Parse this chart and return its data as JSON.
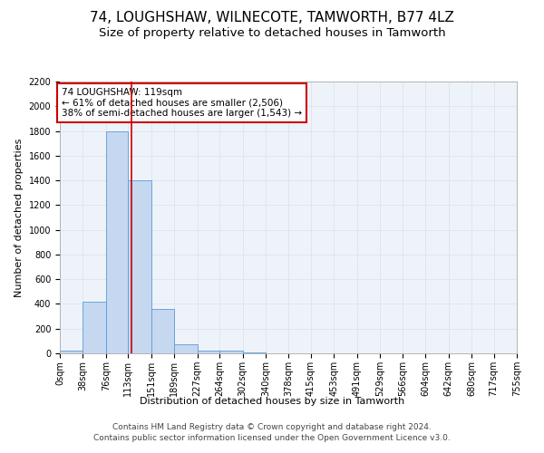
{
  "title": "74, LOUGHSHAW, WILNECOTE, TAMWORTH, B77 4LZ",
  "subtitle": "Size of property relative to detached houses in Tamworth",
  "xlabel": "Distribution of detached houses by size in Tamworth",
  "ylabel": "Number of detached properties",
  "bin_labels": [
    "0sqm",
    "38sqm",
    "76sqm",
    "113sqm",
    "151sqm",
    "189sqm",
    "227sqm",
    "264sqm",
    "302sqm",
    "340sqm",
    "378sqm",
    "415sqm",
    "453sqm",
    "491sqm",
    "529sqm",
    "566sqm",
    "604sqm",
    "642sqm",
    "680sqm",
    "717sqm",
    "755sqm"
  ],
  "bin_edges": [
    0,
    38,
    76,
    113,
    151,
    189,
    227,
    264,
    302,
    340,
    378,
    415,
    453,
    491,
    529,
    566,
    604,
    642,
    680,
    717,
    755
  ],
  "bar_values": [
    20,
    420,
    1800,
    1400,
    360,
    75,
    25,
    20,
    5,
    2,
    1,
    1,
    0,
    0,
    0,
    0,
    0,
    0,
    0,
    0
  ],
  "bar_color": "#c5d8f0",
  "bar_edge_color": "#5b9bd5",
  "vline_x": 119,
  "vline_color": "#cc0000",
  "annotation_text": "74 LOUGHSHAW: 119sqm\n← 61% of detached houses are smaller (2,506)\n38% of semi-detached houses are larger (1,543) →",
  "annotation_box_color": "#ffffff",
  "annotation_box_edge": "#cc0000",
  "ylim": [
    0,
    2200
  ],
  "yticks": [
    0,
    200,
    400,
    600,
    800,
    1000,
    1200,
    1400,
    1600,
    1800,
    2000,
    2200
  ],
  "grid_color": "#dce6f1",
  "footer_text": "Contains HM Land Registry data © Crown copyright and database right 2024.\nContains public sector information licensed under the Open Government Licence v3.0.",
  "title_fontsize": 11,
  "subtitle_fontsize": 9.5,
  "axis_label_fontsize": 8,
  "tick_fontsize": 7,
  "footer_fontsize": 6.5,
  "annotation_fontsize": 7.5
}
